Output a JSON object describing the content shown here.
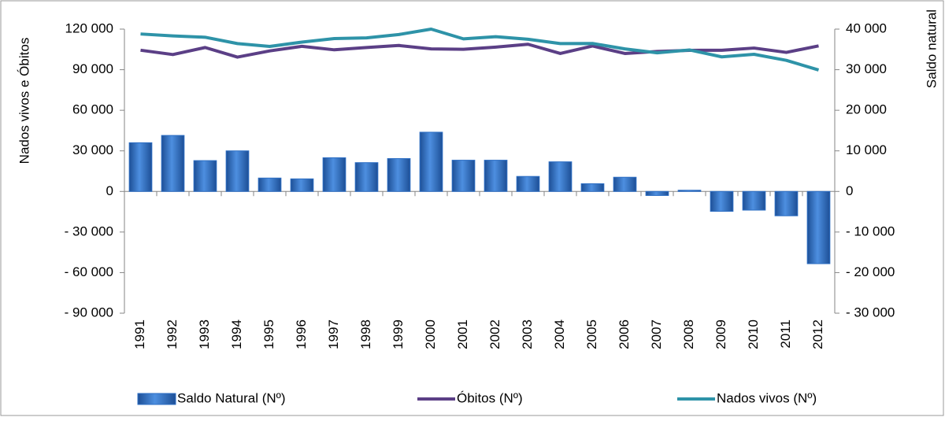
{
  "chart_data": {
    "type": "bar",
    "y_label": "Nados vivos e Óbitos",
    "y2_label": "Saldo natural",
    "categories": [
      "1991",
      "1992",
      "1993",
      "1994",
      "1995",
      "1996",
      "1997",
      "1998",
      "1999",
      "2000",
      "2001",
      "2002",
      "2003",
      "2004",
      "2005",
      "2006",
      "2007",
      "2008",
      "2009",
      "2010",
      "2011",
      "2012"
    ],
    "series": [
      {
        "name": "Saldo Natural  (Nº)",
        "type": "bar",
        "axis": "y2",
        "color": "#2e6fc4",
        "values": [
          12000,
          13800,
          7600,
          10000,
          3300,
          3100,
          8300,
          7100,
          8100,
          14600,
          7700,
          7700,
          3700,
          7300,
          1900,
          3500,
          -1000,
          300,
          -4900,
          -4600,
          -6000,
          -17800
        ]
      },
      {
        "name": "Óbitos (Nº)",
        "type": "line",
        "color": "#5b3f86",
        "values": [
          104400,
          101200,
          106400,
          99300,
          103900,
          107300,
          104700,
          106400,
          107900,
          105400,
          105100,
          106700,
          108800,
          102000,
          107500,
          102000,
          103500,
          104300,
          104400,
          106000,
          102800,
          107600
        ]
      },
      {
        "name": "Nados vivos (Nº)",
        "type": "line",
        "color": "#2e93a8",
        "values": [
          116400,
          115000,
          114000,
          109300,
          107200,
          110400,
          113000,
          113500,
          116000,
          120000,
          112800,
          114400,
          112500,
          109300,
          109400,
          105400,
          102500,
          104600,
          99500,
          101400,
          96900,
          89800
        ]
      }
    ],
    "ylim": [
      -90000,
      120000
    ],
    "yticks": [
      {
        "value": -90000,
        "label": "- 90 000"
      },
      {
        "value": -60000,
        "label": "- 60 000"
      },
      {
        "value": -30000,
        "label": "- 30 000"
      },
      0,
      {
        "value": 30000,
        "label": "30 000"
      },
      {
        "value": 60000,
        "label": "60 000"
      },
      {
        "value": 90000,
        "label": "90 000"
      },
      {
        "value": 120000,
        "label": "120 000"
      }
    ],
    "y2lim": [
      -30000,
      40000
    ],
    "y2ticks": [
      {
        "value": -30000,
        "label": "- 30 000"
      },
      {
        "value": -20000,
        "label": "- 20 000"
      },
      {
        "value": -10000,
        "label": "- 10 000"
      },
      0,
      {
        "value": 10000,
        "label": "10 000"
      },
      {
        "value": 20000,
        "label": "20 000"
      },
      {
        "value": 30000,
        "label": "30 000"
      },
      {
        "value": 40000,
        "label": "40 000"
      }
    ],
    "legend": "bottom"
  }
}
